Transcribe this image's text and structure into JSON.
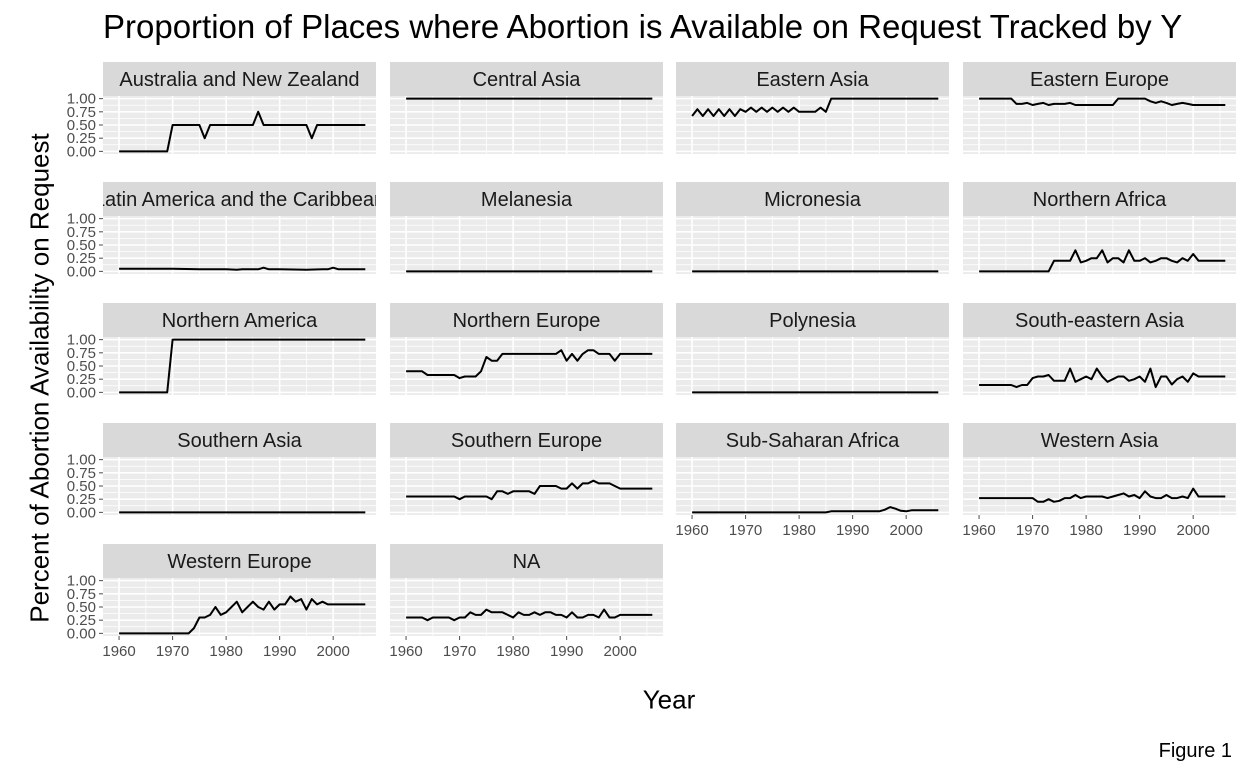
{
  "title": "Proportion of Places where Abortion is Available on Request Tracked by Y",
  "ylabel": "Percent of Abortion Availability on Request",
  "xlabel": "Year",
  "caption": "Figure 1",
  "colors": {
    "panel_bg": "#ebebeb",
    "strip_bg": "#d9d9d9",
    "grid": "#ffffff",
    "line": "#000000",
    "tick": "#4d4d4d"
  },
  "chart_data": {
    "type": "line",
    "layout": "facet-grid",
    "x_ticks": [
      1960,
      1970,
      1980,
      1990,
      2000
    ],
    "y_ticks": [
      "0.00",
      "0.25",
      "0.50",
      "0.75",
      "1.00"
    ],
    "xlim": [
      1957,
      2008
    ],
    "ylim": [
      -0.05,
      1.05
    ],
    "facets": [
      {
        "label": "Australia and New Zealand",
        "x": [
          1960,
          1961,
          1962,
          1963,
          1964,
          1965,
          1966,
          1967,
          1968,
          1969,
          1970,
          1971,
          1972,
          1973,
          1974,
          1975,
          1976,
          1977,
          1978,
          1979,
          1980,
          1981,
          1982,
          1983,
          1984,
          1985,
          1986,
          1987,
          1988,
          1989,
          1990,
          1991,
          1992,
          1993,
          1994,
          1995,
          1996,
          1997,
          1998,
          1999,
          2000,
          2001,
          2002,
          2003,
          2004,
          2005,
          2006
        ],
        "y": [
          0,
          0,
          0,
          0,
          0,
          0,
          0,
          0,
          0,
          0,
          0.5,
          0.5,
          0.5,
          0.5,
          0.5,
          0.5,
          0.25,
          0.5,
          0.5,
          0.5,
          0.5,
          0.5,
          0.5,
          0.5,
          0.5,
          0.5,
          0.75,
          0.5,
          0.5,
          0.5,
          0.5,
          0.5,
          0.5,
          0.5,
          0.5,
          0.5,
          0.25,
          0.5,
          0.5,
          0.5,
          0.5,
          0.5,
          0.5,
          0.5,
          0.5,
          0.5,
          0.5
        ]
      },
      {
        "label": "Central Asia",
        "x": [
          1960,
          2006
        ],
        "y": [
          1,
          1
        ]
      },
      {
        "label": "Eastern Asia",
        "x": [
          1960,
          1961,
          1962,
          1963,
          1964,
          1965,
          1966,
          1967,
          1968,
          1969,
          1970,
          1971,
          1972,
          1973,
          1974,
          1975,
          1976,
          1977,
          1978,
          1979,
          1980,
          1981,
          1982,
          1983,
          1984,
          1985,
          1986,
          1987,
          2006
        ],
        "y": [
          0.67,
          0.8,
          0.67,
          0.8,
          0.67,
          0.8,
          0.67,
          0.8,
          0.67,
          0.8,
          0.75,
          0.83,
          0.75,
          0.83,
          0.75,
          0.83,
          0.75,
          0.83,
          0.75,
          0.83,
          0.75,
          0.75,
          0.75,
          0.75,
          0.83,
          0.75,
          1,
          1,
          1
        ]
      },
      {
        "label": "Eastern Europe",
        "x": [
          1960,
          1966,
          1967,
          1968,
          1969,
          1970,
          1971,
          1972,
          1973,
          1974,
          1975,
          1976,
          1977,
          1978,
          1979,
          1980,
          1981,
          1982,
          1983,
          1984,
          1985,
          1986,
          1987,
          1988,
          1989,
          1990,
          1991,
          1992,
          1993,
          1994,
          1995,
          1996,
          1997,
          1998,
          1999,
          2000,
          2001,
          2002,
          2003,
          2004,
          2005,
          2006
        ],
        "y": [
          1,
          1,
          0.9,
          0.9,
          0.92,
          0.88,
          0.9,
          0.92,
          0.88,
          0.9,
          0.9,
          0.9,
          0.92,
          0.88,
          0.88,
          0.88,
          0.88,
          0.88,
          0.88,
          0.88,
          0.88,
          1,
          1,
          1,
          1,
          1,
          1,
          0.95,
          0.92,
          0.95,
          0.92,
          0.88,
          0.9,
          0.92,
          0.9,
          0.88,
          0.88,
          0.88,
          0.88,
          0.88,
          0.88,
          0.88
        ]
      },
      {
        "label": "Latin America and the Caribbean",
        "x": [
          1960,
          1970,
          1975,
          1980,
          1982,
          1983,
          1984,
          1985,
          1986,
          1987,
          1988,
          1990,
          1995,
          1998,
          1999,
          2000,
          2001,
          2006
        ],
        "y": [
          0.05,
          0.05,
          0.04,
          0.04,
          0.03,
          0.04,
          0.04,
          0.04,
          0.04,
          0.07,
          0.04,
          0.04,
          0.03,
          0.04,
          0.04,
          0.07,
          0.04,
          0.04
        ]
      },
      {
        "label": "Melanesia",
        "x": [
          1960,
          2006
        ],
        "y": [
          0,
          0
        ]
      },
      {
        "label": "Micronesia",
        "x": [
          1960,
          2006
        ],
        "y": [
          0,
          0
        ]
      },
      {
        "label": "Northern Africa",
        "x": [
          1960,
          1972,
          1973,
          1974,
          1975,
          1976,
          1977,
          1978,
          1979,
          1980,
          1981,
          1982,
          1983,
          1984,
          1985,
          1986,
          1987,
          1988,
          1989,
          1990,
          1991,
          1992,
          1993,
          1994,
          1995,
          1996,
          1997,
          1998,
          1999,
          2000,
          2001,
          2002,
          2003,
          2004,
          2005,
          2006
        ],
        "y": [
          0,
          0,
          0,
          0.2,
          0.2,
          0.2,
          0.2,
          0.4,
          0.17,
          0.2,
          0.25,
          0.25,
          0.4,
          0.17,
          0.25,
          0.25,
          0.17,
          0.4,
          0.2,
          0.2,
          0.25,
          0.17,
          0.2,
          0.25,
          0.25,
          0.2,
          0.17,
          0.25,
          0.2,
          0.33,
          0.2,
          0.2,
          0.2,
          0.2,
          0.2,
          0.2
        ]
      },
      {
        "label": "Northern America",
        "x": [
          1960,
          1969,
          1970,
          2006
        ],
        "y": [
          0,
          0,
          1,
          1
        ]
      },
      {
        "label": "Northern Europe",
        "x": [
          1960,
          1961,
          1962,
          1963,
          1964,
          1965,
          1966,
          1967,
          1968,
          1969,
          1970,
          1971,
          1972,
          1973,
          1974,
          1975,
          1976,
          1977,
          1978,
          1979,
          1980,
          1981,
          1982,
          1983,
          1984,
          1985,
          1986,
          1987,
          1988,
          1989,
          1990,
          1991,
          1992,
          1993,
          1994,
          1995,
          1996,
          1997,
          1998,
          1999,
          2000,
          2001,
          2002,
          2003,
          2004,
          2005,
          2006
        ],
        "y": [
          0.4,
          0.4,
          0.4,
          0.4,
          0.33,
          0.33,
          0.33,
          0.33,
          0.33,
          0.33,
          0.27,
          0.3,
          0.3,
          0.3,
          0.4,
          0.67,
          0.6,
          0.6,
          0.73,
          0.73,
          0.73,
          0.73,
          0.73,
          0.73,
          0.73,
          0.73,
          0.73,
          0.73,
          0.73,
          0.8,
          0.6,
          0.73,
          0.6,
          0.73,
          0.8,
          0.8,
          0.73,
          0.73,
          0.73,
          0.6,
          0.73,
          0.73,
          0.73,
          0.73,
          0.73,
          0.73,
          0.73
        ]
      },
      {
        "label": "Polynesia",
        "x": [
          1960,
          2006
        ],
        "y": [
          0,
          0
        ]
      },
      {
        "label": "South-eastern Asia",
        "x": [
          1960,
          1961,
          1962,
          1963,
          1964,
          1965,
          1966,
          1967,
          1968,
          1969,
          1970,
          1971,
          1972,
          1973,
          1974,
          1975,
          1976,
          1977,
          1978,
          1979,
          1980,
          1981,
          1982,
          1983,
          1984,
          1985,
          1986,
          1987,
          1988,
          1989,
          1990,
          1991,
          1992,
          1993,
          1994,
          1995,
          1996,
          1997,
          1998,
          1999,
          2000,
          2001,
          2002,
          2003,
          2004,
          2005,
          2006
        ],
        "y": [
          0.14,
          0.14,
          0.14,
          0.14,
          0.14,
          0.14,
          0.14,
          0.1,
          0.14,
          0.14,
          0.27,
          0.3,
          0.3,
          0.33,
          0.22,
          0.22,
          0.22,
          0.45,
          0.2,
          0.25,
          0.3,
          0.25,
          0.45,
          0.3,
          0.2,
          0.25,
          0.3,
          0.3,
          0.22,
          0.25,
          0.3,
          0.2,
          0.45,
          0.1,
          0.3,
          0.3,
          0.15,
          0.25,
          0.3,
          0.2,
          0.36,
          0.3,
          0.3,
          0.3,
          0.3,
          0.3,
          0.3
        ]
      },
      {
        "label": "Southern Asia",
        "x": [
          1960,
          2006
        ],
        "y": [
          0,
          0
        ]
      },
      {
        "label": "Southern Europe",
        "x": [
          1960,
          1969,
          1970,
          1971,
          1972,
          1973,
          1974,
          1975,
          1976,
          1977,
          1978,
          1979,
          1980,
          1981,
          1982,
          1983,
          1984,
          1985,
          1986,
          1987,
          1988,
          1989,
          1990,
          1991,
          1992,
          1993,
          1994,
          1995,
          1996,
          1997,
          1998,
          1999,
          2000,
          2001,
          2002,
          2003,
          2004,
          2005,
          2006
        ],
        "y": [
          0.3,
          0.3,
          0.25,
          0.3,
          0.3,
          0.3,
          0.3,
          0.3,
          0.25,
          0.4,
          0.4,
          0.35,
          0.4,
          0.4,
          0.4,
          0.4,
          0.35,
          0.5,
          0.5,
          0.5,
          0.5,
          0.45,
          0.45,
          0.55,
          0.45,
          0.55,
          0.55,
          0.6,
          0.55,
          0.55,
          0.55,
          0.5,
          0.45,
          0.45,
          0.45,
          0.45,
          0.45,
          0.45,
          0.45
        ]
      },
      {
        "label": "Sub-Saharan Africa",
        "x": [
          1960,
          1985,
          1986,
          1995,
          1996,
          1997,
          1998,
          1999,
          2000,
          2001,
          2006
        ],
        "y": [
          0,
          0,
          0.02,
          0.02,
          0.05,
          0.1,
          0.07,
          0.03,
          0.02,
          0.04,
          0.04
        ]
      },
      {
        "label": "Western Asia",
        "x": [
          1960,
          1961,
          1962,
          1963,
          1964,
          1965,
          1966,
          1967,
          1968,
          1969,
          1970,
          1971,
          1972,
          1973,
          1974,
          1975,
          1976,
          1977,
          1978,
          1979,
          1980,
          1981,
          1982,
          1983,
          1984,
          1985,
          1986,
          1987,
          1988,
          1989,
          1990,
          1991,
          1992,
          1993,
          1994,
          1995,
          1996,
          1997,
          1998,
          1999,
          2000,
          2001,
          2002,
          2003,
          2004,
          2005,
          2006
        ],
        "y": [
          0.27,
          0.27,
          0.27,
          0.27,
          0.27,
          0.27,
          0.27,
          0.27,
          0.27,
          0.27,
          0.27,
          0.2,
          0.2,
          0.25,
          0.2,
          0.22,
          0.27,
          0.27,
          0.33,
          0.27,
          0.3,
          0.3,
          0.3,
          0.3,
          0.27,
          0.3,
          0.33,
          0.36,
          0.3,
          0.33,
          0.27,
          0.4,
          0.3,
          0.27,
          0.27,
          0.33,
          0.27,
          0.27,
          0.3,
          0.27,
          0.45,
          0.3,
          0.3,
          0.3,
          0.3,
          0.3,
          0.3
        ]
      },
      {
        "label": "Western Europe",
        "x": [
          1960,
          1961,
          1962,
          1963,
          1964,
          1965,
          1966,
          1967,
          1968,
          1969,
          1970,
          1971,
          1972,
          1973,
          1974,
          1975,
          1976,
          1977,
          1978,
          1979,
          1980,
          1981,
          1982,
          1983,
          1984,
          1985,
          1986,
          1987,
          1988,
          1989,
          1990,
          1991,
          1992,
          1993,
          1994,
          1995,
          1996,
          1997,
          1998,
          1999,
          2000,
          2001,
          2002,
          2003,
          2004,
          2005,
          2006
        ],
        "y": [
          0,
          0,
          0,
          0,
          0,
          0,
          0,
          0,
          0,
          0,
          0,
          0,
          0,
          0,
          0.1,
          0.3,
          0.3,
          0.35,
          0.5,
          0.35,
          0.4,
          0.5,
          0.6,
          0.4,
          0.5,
          0.6,
          0.5,
          0.45,
          0.6,
          0.45,
          0.55,
          0.55,
          0.7,
          0.6,
          0.65,
          0.45,
          0.65,
          0.55,
          0.6,
          0.55,
          0.55,
          0.55,
          0.55,
          0.55,
          0.55,
          0.55,
          0.55
        ]
      },
      {
        "label": "NA",
        "x": [
          1960,
          1961,
          1962,
          1963,
          1964,
          1965,
          1966,
          1967,
          1968,
          1969,
          1970,
          1971,
          1972,
          1973,
          1974,
          1975,
          1976,
          1977,
          1978,
          1979,
          1980,
          1981,
          1982,
          1983,
          1984,
          1985,
          1986,
          1987,
          1988,
          1989,
          1990,
          1991,
          1992,
          1993,
          1994,
          1995,
          1996,
          1997,
          1998,
          1999,
          2000,
          2001,
          2002,
          2003,
          2004,
          2005,
          2006
        ],
        "y": [
          0.3,
          0.3,
          0.3,
          0.3,
          0.25,
          0.3,
          0.3,
          0.3,
          0.3,
          0.25,
          0.3,
          0.3,
          0.4,
          0.35,
          0.35,
          0.45,
          0.4,
          0.4,
          0.4,
          0.35,
          0.3,
          0.4,
          0.35,
          0.35,
          0.4,
          0.35,
          0.4,
          0.4,
          0.35,
          0.35,
          0.3,
          0.4,
          0.3,
          0.3,
          0.35,
          0.35,
          0.3,
          0.45,
          0.3,
          0.3,
          0.35,
          0.35,
          0.35,
          0.35,
          0.35,
          0.35,
          0.35
        ]
      }
    ]
  }
}
